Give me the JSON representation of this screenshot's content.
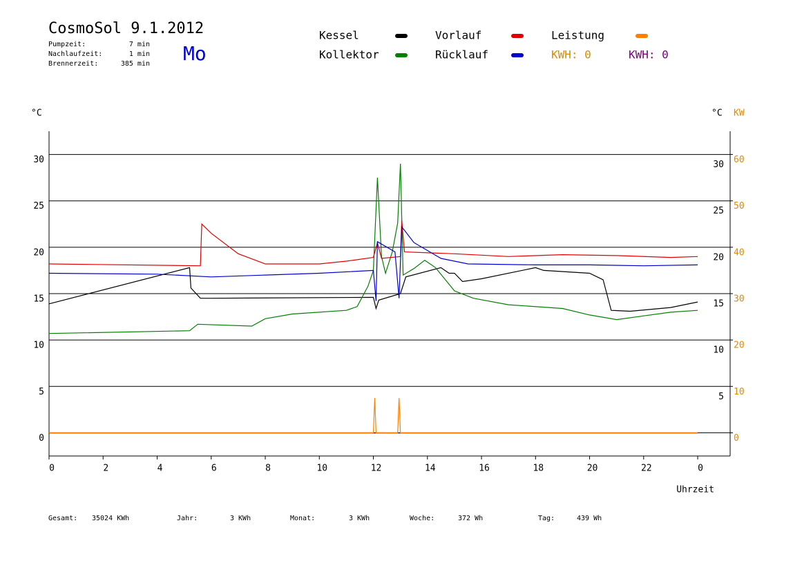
{
  "chart_data": {
    "type": "line",
    "title": "CosmoSol 9.1.2012",
    "weekday": "Mo",
    "info": [
      {
        "label": "Pumpzeit:",
        "value": "7 min"
      },
      {
        "label": "Nachlaufzeit:",
        "value": "1 min"
      },
      {
        "label": "Brennerzeit:",
        "value": "385 min"
      }
    ],
    "kwh": [
      {
        "text": "KWH: 0",
        "color": "#e08a00"
      },
      {
        "text": "KWH: 0",
        "color": "#800080"
      }
    ],
    "y_unit": "°C",
    "y_unit_right": "°C",
    "y2_unit": "KW",
    "xlabel": "Uhrzeit",
    "xlim": [
      0,
      25.2
    ],
    "xticks": [
      0,
      2,
      4,
      6,
      8,
      10,
      12,
      14,
      16,
      18,
      20,
      22,
      {
        "value": 24,
        "label": "0"
      }
    ],
    "ylim": [
      -2.5,
      32.5
    ],
    "yticks": [
      0,
      5,
      10,
      15,
      20,
      25,
      30
    ],
    "yticks_right": [
      5,
      10,
      15,
      20,
      25,
      30
    ],
    "y2lim": [
      -5,
      65
    ],
    "y2ticks": [
      0,
      10,
      20,
      30,
      40,
      50,
      60
    ],
    "grid": true,
    "series": [
      {
        "name": "Kessel",
        "color": "#000000",
        "x": [
          0,
          5.2,
          5.25,
          5.6,
          6,
          12,
          12.1,
          12.2,
          13,
          13.2,
          14.5,
          14.8,
          15,
          15.3,
          16,
          18,
          18.3,
          20,
          20.5,
          20.8,
          21.5,
          23,
          24
        ],
        "values": [
          13.9,
          17.8,
          15.6,
          14.5,
          14.5,
          14.6,
          13.4,
          14.3,
          15,
          16.8,
          17.8,
          17.2,
          17.2,
          16.3,
          16.6,
          17.8,
          17.5,
          17.2,
          16.5,
          13.2,
          13.1,
          13.5,
          14.1
        ]
      },
      {
        "name": "Kollektor",
        "color": "#008000",
        "x": [
          0,
          5.2,
          5.5,
          7.5,
          8,
          9,
          11,
          11.4,
          11.8,
          12.0,
          12.15,
          12.3,
          12.45,
          12.7,
          12.9,
          13.0,
          13.1,
          13.5,
          13.9,
          14.3,
          15,
          15.7,
          17,
          19,
          20,
          21,
          22,
          23,
          24
        ],
        "values": [
          10.7,
          11,
          11.7,
          11.5,
          12.3,
          12.8,
          13.2,
          13.6,
          15.8,
          17.5,
          27.5,
          19,
          17.2,
          19.5,
          22.6,
          29,
          17,
          17.7,
          18.6,
          17.8,
          15.3,
          14.5,
          13.8,
          13.4,
          12.7,
          12.2,
          12.6,
          13,
          13.2
        ]
      },
      {
        "name": "Vorlauf",
        "color": "#e00000",
        "x": [
          0,
          5.6,
          5.65,
          6,
          7,
          8,
          10,
          11,
          12,
          12.15,
          12.3,
          13,
          13.05,
          13.15,
          15,
          17,
          19,
          21,
          23,
          24
        ],
        "values": [
          18.2,
          18,
          22.5,
          21.5,
          19.3,
          18.2,
          18.2,
          18.5,
          18.9,
          20.5,
          18.8,
          19,
          22.9,
          19.5,
          19.3,
          19,
          19.2,
          19.1,
          18.9,
          19
        ]
      },
      {
        "name": "Rücklauf",
        "color": "#0000cc",
        "x": [
          0,
          4,
          6,
          8,
          10,
          12,
          12.1,
          12.15,
          12.8,
          12.95,
          13.05,
          13.5,
          14.5,
          15.5,
          18,
          20,
          22,
          24
        ],
        "values": [
          17.2,
          17.1,
          16.8,
          17,
          17.2,
          17.5,
          14.2,
          20.6,
          19.5,
          14.5,
          22.2,
          20.5,
          18.8,
          18.2,
          18.1,
          18.1,
          18,
          18.1
        ]
      },
      {
        "name": "Leistung",
        "color": "#ff8000",
        "axis": "y2",
        "x": [
          0,
          12.0,
          12.05,
          12.1,
          12.9,
          12.95,
          13.0,
          24
        ],
        "values": [
          0,
          0,
          7.5,
          0,
          0,
          7.5,
          0,
          0
        ]
      }
    ],
    "totals": [
      {
        "label": "Gesamt:",
        "value": "35024 KWh"
      },
      {
        "label": "Jahr:",
        "value": "3 KWh"
      },
      {
        "label": "Monat:",
        "value": "3 KWh"
      },
      {
        "label": "Woche:",
        "value": "372 Wh"
      },
      {
        "label": "Tag:",
        "value": "439 Wh"
      }
    ]
  }
}
